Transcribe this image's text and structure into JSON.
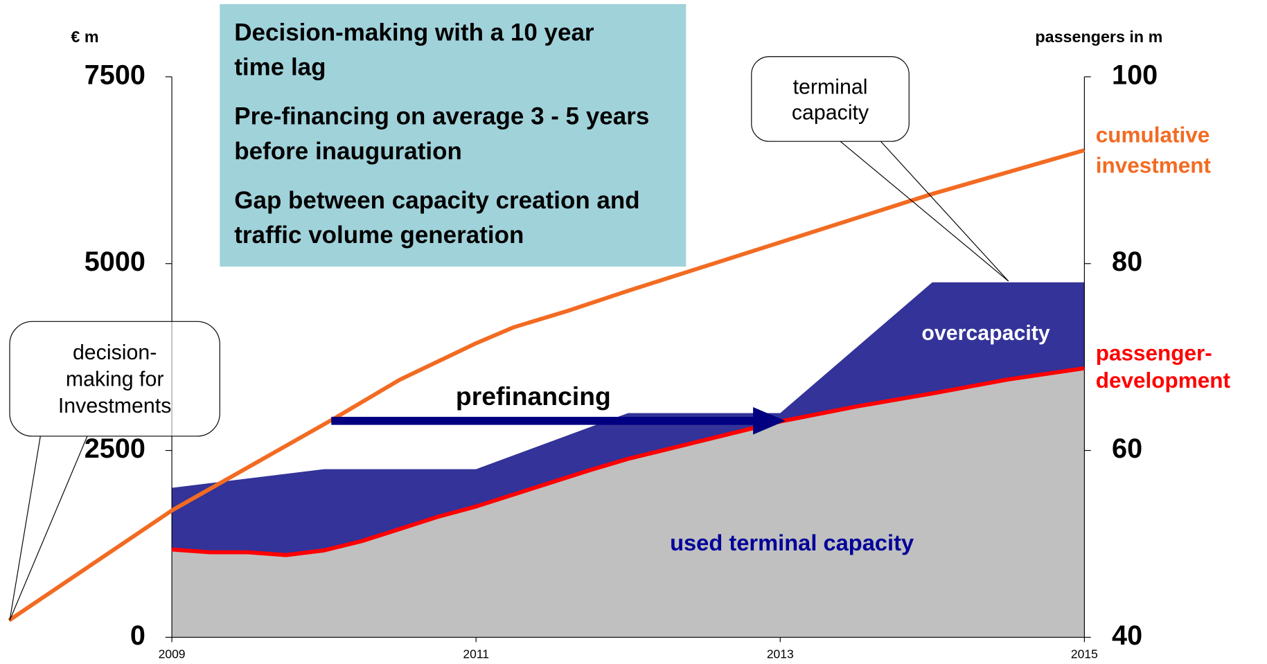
{
  "chart_data": {
    "type": "combo",
    "ylabel": "€ m",
    "y2label": "passengers in m",
    "xlim": [
      2007.87,
      2015
    ],
    "xticks": [
      2009,
      2011,
      2013,
      2015
    ],
    "ylim": [
      0,
      7500
    ],
    "yticks": [
      0,
      2500,
      5000,
      7500
    ],
    "y2lim": [
      40,
      100
    ],
    "y2ticks": [
      40,
      60,
      80,
      100
    ],
    "series": [
      {
        "name": "overcapacity",
        "kind": "area",
        "axis": "y2",
        "color": "#333399",
        "x": [
          2009,
          2009.4,
          2010,
          2011,
          2012,
          2013,
          2014,
          2015
        ],
        "values": [
          56,
          56.8,
          58,
          58,
          64,
          64,
          78,
          78
        ]
      },
      {
        "name": "passenger-development",
        "kind": "line",
        "axis": "y2",
        "color": "#ff0000",
        "area_label": "used terminal capacity",
        "area_color": "#c0c0c0",
        "x": [
          2009,
          2009.25,
          2009.5,
          2009.75,
          2010,
          2010.25,
          2010.5,
          2010.75,
          2011,
          2011.25,
          2011.5,
          2011.75,
          2012,
          2012.25,
          2012.5,
          2012.75,
          2013,
          2013.5,
          2014,
          2014.5,
          2015
        ],
        "values": [
          49.4,
          49.1,
          49.1,
          48.8,
          49.3,
          50.3,
          51.6,
          52.9,
          54.0,
          55.3,
          56.6,
          57.9,
          59.1,
          60.1,
          61.1,
          62.1,
          63.1,
          64.7,
          66.1,
          67.6,
          68.8
        ]
      },
      {
        "name": "cumulative investment",
        "kind": "line",
        "axis": "y",
        "color": "#f26b22",
        "x": [
          2007.93,
          2009,
          2010.05,
          2010.5,
          2011,
          2011.25,
          2011.6,
          2012,
          2013,
          2014,
          2015
        ],
        "values": [
          227,
          1697,
          2907,
          3448,
          3934,
          4150,
          4366,
          4636,
          5285,
          5933,
          6517
        ]
      }
    ],
    "info_box": [
      "Decision-making with a 10 year time lag",
      "Pre-financing on average 3 - 5 years before inauguration",
      "Gap between capacity creation and traffic volume generation"
    ],
    "annotations": {
      "prefinancing": "prefinancing",
      "terminal_callout": "terminal capacity",
      "decision_callout": "decision-making for Investments"
    }
  }
}
